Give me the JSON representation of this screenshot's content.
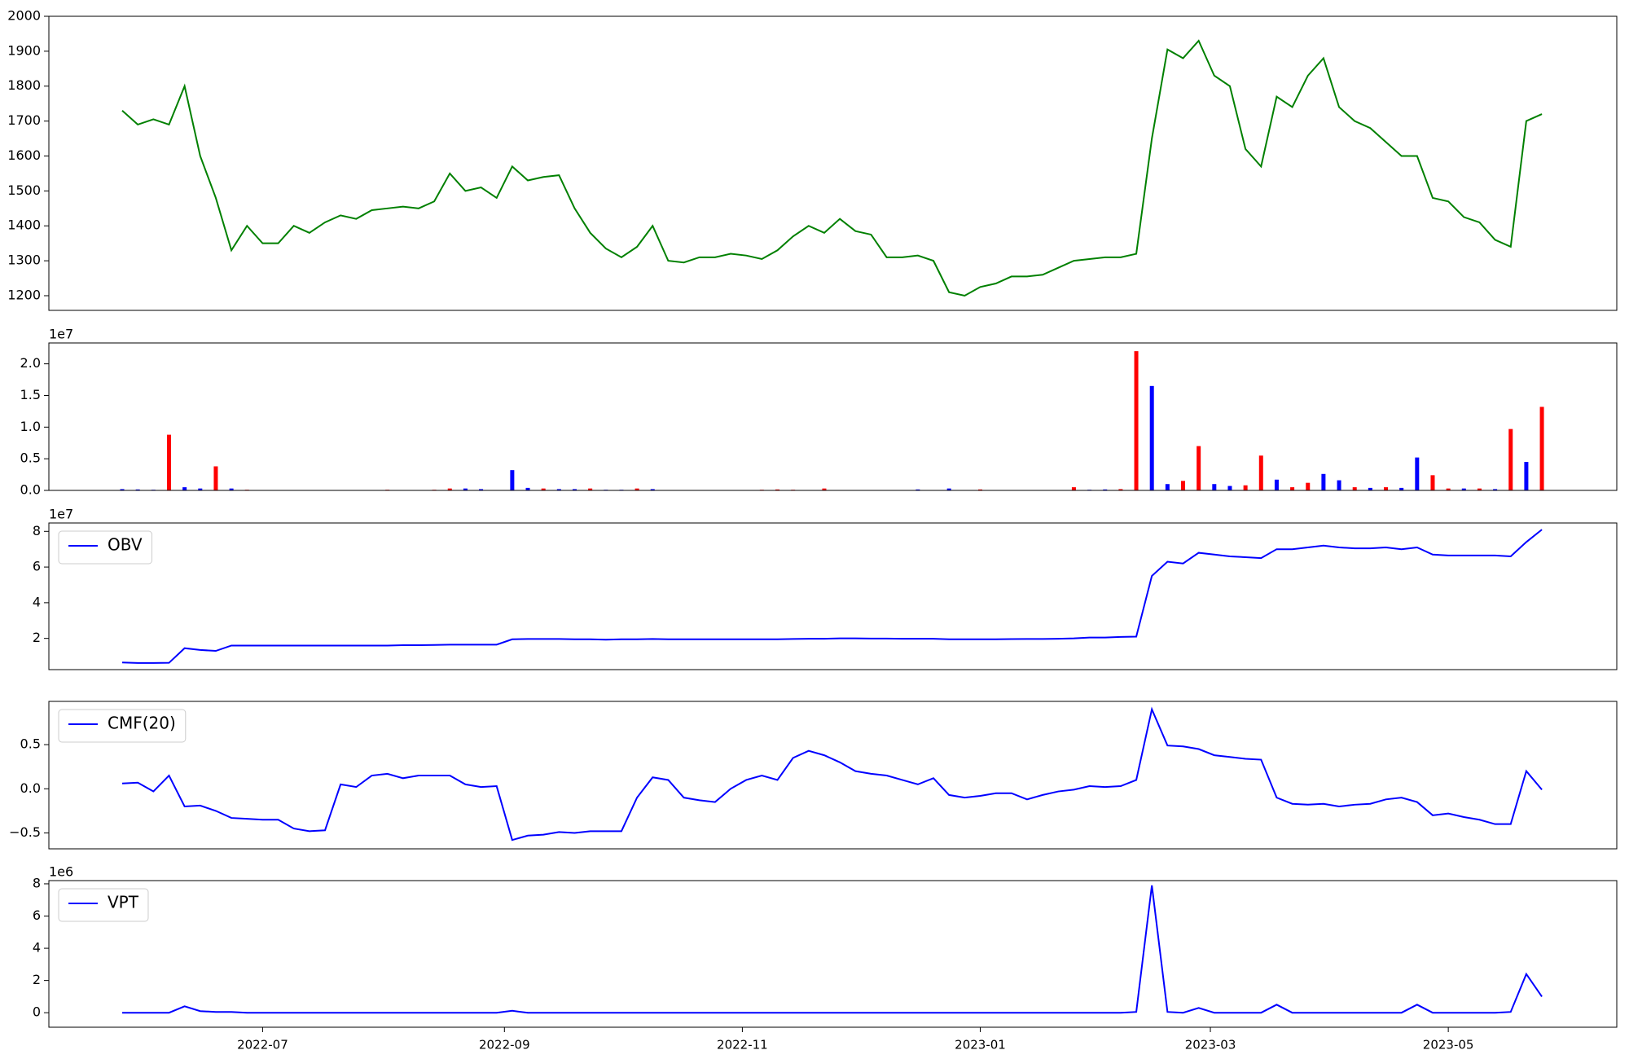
{
  "chart_data": [
    {
      "type": "line",
      "xlim": [
        -4.7,
        95.8
      ],
      "ylim": [
        1158,
        2000
      ],
      "yticks": [
        1200,
        1300,
        1400,
        1500,
        1600,
        1700,
        1800,
        1900,
        2000
      ],
      "series": [
        {
          "color": "#008000",
          "values": [
            1730,
            1690,
            1705,
            1690,
            1800,
            1600,
            1480,
            1330,
            1400,
            1350,
            1350,
            1400,
            1380,
            1410,
            1430,
            1420,
            1445,
            1450,
            1455,
            1450,
            1470,
            1550,
            1500,
            1510,
            1480,
            1570,
            1530,
            1540,
            1545,
            1450,
            1380,
            1335,
            1310,
            1340,
            1400,
            1300,
            1295,
            1310,
            1310,
            1320,
            1315,
            1305,
            1330,
            1370,
            1400,
            1380,
            1420,
            1385,
            1375,
            1310,
            1310,
            1315,
            1300,
            1210,
            1200,
            1225,
            1235,
            1255,
            1255,
            1260,
            1280,
            1300,
            1305,
            1310,
            1310,
            1320,
            1650,
            1905,
            1880,
            1930,
            1830,
            1800,
            1620,
            1570,
            1770,
            1740,
            1830,
            1880,
            1740,
            1700,
            1680,
            1640,
            1600,
            1600,
            1480,
            1470,
            1425,
            1410,
            1360,
            1340,
            1700,
            1720
          ]
        }
      ]
    },
    {
      "type": "bar",
      "xlim": [
        -4.7,
        95.8
      ],
      "ylim": [
        0,
        23300000
      ],
      "offset_text": "1e7",
      "yticks": [
        {
          "value": 0,
          "label": "0.0"
        },
        {
          "value": 5000000,
          "label": "0.5"
        },
        {
          "value": 10000000,
          "label": "1.0"
        },
        {
          "value": 15000000,
          "label": "1.5"
        },
        {
          "value": 20000000,
          "label": "2.0"
        }
      ],
      "series": [
        {
          "values": [
            200000,
            150000,
            100000,
            8800000,
            500000,
            300000,
            3800000,
            300000,
            100000,
            50000,
            50000,
            50000,
            50000,
            50000,
            50000,
            50000,
            50000,
            100000,
            50000,
            50000,
            100000,
            300000,
            300000,
            200000,
            50000,
            3200000,
            400000,
            300000,
            200000,
            200000,
            300000,
            100000,
            100000,
            300000,
            200000,
            50000,
            50000,
            50000,
            50000,
            50000,
            50000,
            100000,
            150000,
            100000,
            50000,
            300000,
            50000,
            50000,
            50000,
            50000,
            50000,
            150000,
            50000,
            300000,
            50000,
            150000,
            50000,
            50000,
            50000,
            50000,
            50000,
            500000,
            100000,
            150000,
            200000,
            22000000,
            16500000,
            1000000,
            1500000,
            7000000,
            1000000,
            700000,
            800000,
            5500000,
            1700000,
            500000,
            1200000,
            2600000,
            1600000,
            500000,
            400000,
            500000,
            400000,
            5200000,
            2400000,
            300000,
            300000,
            300000,
            200000,
            9700000,
            4500000,
            13200000
          ],
          "colors": [
            "blue",
            "blue",
            "blue",
            "red",
            "blue",
            "blue",
            "red",
            "blue",
            "red",
            "blue",
            "red",
            "blue",
            "red",
            "blue",
            "red",
            "blue",
            "red",
            "red",
            "blue",
            "red",
            "red",
            "red",
            "blue",
            "blue",
            "red",
            "blue",
            "blue",
            "red",
            "blue",
            "blue",
            "red",
            "blue",
            "blue",
            "red",
            "blue",
            "red",
            "blue",
            "red",
            "blue",
            "red",
            "blue",
            "red",
            "red",
            "red",
            "blue",
            "red",
            "blue",
            "red",
            "blue",
            "red",
            "blue",
            "blue",
            "red",
            "blue",
            "red",
            "red",
            "blue",
            "red",
            "blue",
            "red",
            "blue",
            "red",
            "blue",
            "blue",
            "red",
            "red",
            "blue",
            "blue",
            "red",
            "red",
            "blue",
            "blue",
            "red",
            "red",
            "blue",
            "red",
            "red",
            "blue",
            "blue",
            "red",
            "blue",
            "red",
            "blue",
            "blue",
            "red",
            "red",
            "blue",
            "red",
            "blue",
            "red",
            "blue",
            "red"
          ]
        }
      ]
    },
    {
      "type": "line",
      "xlim": [
        -4.7,
        95.8
      ],
      "ylim": [
        2500000,
        84700000
      ],
      "offset_text": "1e7",
      "legend": "upper left",
      "yticks": [
        {
          "value": 20000000,
          "label": "2"
        },
        {
          "value": 40000000,
          "label": "4"
        },
        {
          "value": 60000000,
          "label": "6"
        },
        {
          "value": 80000000,
          "label": "8"
        }
      ],
      "series": [
        {
          "name": "OBV",
          "color": "#0000ff",
          "values": [
            6500000,
            6200000,
            6200000,
            6300000,
            14500000,
            13500000,
            13000000,
            16000000,
            16000000,
            16000000,
            16000000,
            16000000,
            16000000,
            16000000,
            16000000,
            16000000,
            16000000,
            16000000,
            16200000,
            16200000,
            16300000,
            16500000,
            16500000,
            16500000,
            16500000,
            19500000,
            19700000,
            19700000,
            19700000,
            19500000,
            19500000,
            19300000,
            19500000,
            19500000,
            19700000,
            19500000,
            19500000,
            19500000,
            19500000,
            19500000,
            19500000,
            19500000,
            19500000,
            19700000,
            19800000,
            19800000,
            20000000,
            20000000,
            19900000,
            19900000,
            19800000,
            19800000,
            19800000,
            19500000,
            19500000,
            19500000,
            19500000,
            19600000,
            19700000,
            19700000,
            19800000,
            20000000,
            20500000,
            20500000,
            20800000,
            21000000,
            55000000,
            63000000,
            62000000,
            68000000,
            67000000,
            66000000,
            65500000,
            65000000,
            70000000,
            70000000,
            71000000,
            72000000,
            71000000,
            70500000,
            70500000,
            71000000,
            70000000,
            71000000,
            67000000,
            66500000,
            66500000,
            66500000,
            66500000,
            66000000,
            74000000,
            81000000
          ]
        }
      ]
    },
    {
      "type": "line",
      "xlim": [
        -4.7,
        95.8
      ],
      "ylim": [
        -0.68,
        0.99
      ],
      "legend": "upper left",
      "yticks": [
        {
          "value": -0.5,
          "label": "−0.5"
        },
        {
          "value": 0,
          "label": "0.0"
        },
        {
          "value": 0.5,
          "label": "0.5"
        }
      ],
      "series": [
        {
          "name": "CMF(20)",
          "color": "#0000ff",
          "values": [
            0.06,
            0.07,
            -0.03,
            0.15,
            -0.2,
            -0.19,
            -0.25,
            -0.33,
            -0.34,
            -0.35,
            -0.35,
            -0.45,
            -0.48,
            -0.47,
            0.05,
            0.02,
            0.15,
            0.17,
            0.12,
            0.15,
            0.15,
            0.15,
            0.05,
            0.02,
            0.03,
            -0.58,
            -0.53,
            -0.52,
            -0.49,
            -0.5,
            -0.48,
            -0.48,
            -0.48,
            -0.1,
            0.13,
            0.1,
            -0.1,
            -0.13,
            -0.15,
            0.0,
            0.1,
            0.15,
            0.1,
            0.35,
            0.43,
            0.38,
            0.3,
            0.2,
            0.17,
            0.15,
            0.1,
            0.05,
            0.12,
            -0.07,
            -0.1,
            -0.08,
            -0.05,
            -0.05,
            -0.12,
            -0.07,
            -0.03,
            -0.01,
            0.03,
            0.02,
            0.03,
            0.1,
            0.9,
            0.49,
            0.48,
            0.45,
            0.38,
            0.36,
            0.34,
            0.33,
            -0.1,
            -0.17,
            -0.18,
            -0.17,
            -0.2,
            -0.18,
            -0.17,
            -0.12,
            -0.1,
            -0.15,
            -0.3,
            -0.28,
            -0.32,
            -0.35,
            -0.4,
            -0.4,
            0.2,
            -0.01
          ]
        }
      ]
    },
    {
      "type": "line",
      "xlim": [
        -4.7,
        95.8
      ],
      "ylim": [
        -900000,
        8200000
      ],
      "offset_text": "1e6",
      "legend": "upper left",
      "yticks": [
        0,
        {
          "value": 2000000,
          "label": "2"
        },
        {
          "value": 4000000,
          "label": "4"
        },
        {
          "value": 6000000,
          "label": "6"
        },
        {
          "value": 8000000,
          "label": "8"
        }
      ],
      "xticks": [
        {
          "value": 9,
          "label": "2022-07"
        },
        {
          "value": 24.5,
          "label": "2022-09"
        },
        {
          "value": 39.75,
          "label": "2022-11"
        },
        {
          "value": 55,
          "label": "2023-01"
        },
        {
          "value": 69.75,
          "label": "2023-03"
        },
        {
          "value": 85,
          "label": "2023-05"
        }
      ],
      "series": [
        {
          "name": "VPT",
          "color": "#0000ff",
          "values": [
            0,
            0,
            0,
            0,
            400000,
            100000,
            50000,
            50000,
            0,
            0,
            0,
            0,
            0,
            0,
            0,
            0,
            0,
            0,
            0,
            0,
            0,
            0,
            0,
            0,
            0,
            120000,
            0,
            0,
            0,
            0,
            0,
            0,
            0,
            0,
            0,
            0,
            0,
            0,
            0,
            0,
            0,
            0,
            0,
            0,
            0,
            0,
            0,
            0,
            0,
            0,
            0,
            0,
            0,
            0,
            0,
            0,
            0,
            0,
            0,
            0,
            0,
            0,
            0,
            0,
            0,
            50000,
            7900000,
            50000,
            0,
            300000,
            0,
            0,
            0,
            0,
            500000,
            0,
            0,
            0,
            0,
            0,
            0,
            0,
            0,
            500000,
            0,
            0,
            0,
            0,
            0,
            50000,
            2400000,
            1000000
          ]
        }
      ]
    }
  ]
}
